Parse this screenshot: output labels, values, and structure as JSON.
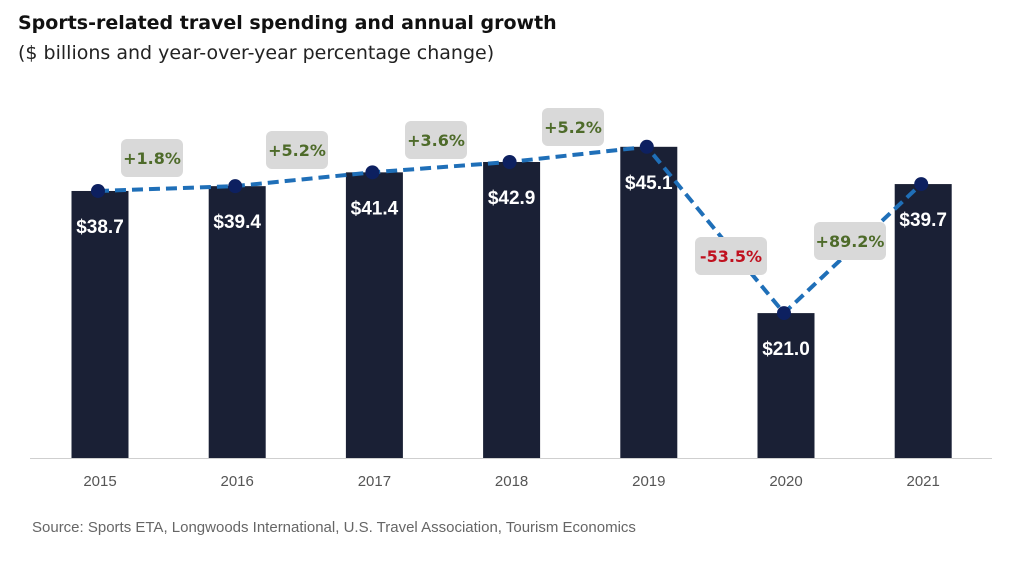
{
  "chart_data": {
    "type": "bar+line",
    "title": "Sports-related travel spending and annual growth",
    "subtitle": "($ billions and year-over-year percentage change)",
    "categories": [
      "2015",
      "2016",
      "2017",
      "2018",
      "2019",
      "2020",
      "2021"
    ],
    "values": [
      38.7,
      39.4,
      41.4,
      42.9,
      45.1,
      21.0,
      39.7
    ],
    "value_labels": [
      "$38.7",
      "$39.4",
      "$41.4",
      "$42.9",
      "$45.1",
      "$21.0",
      "$39.7"
    ],
    "growth_labels": [
      "+1.8%",
      "+5.2%",
      "+3.6%",
      "+5.2%",
      "-53.5%",
      "+89.2%"
    ],
    "growth_values": [
      1.8,
      5.2,
      3.6,
      5.2,
      -53.5,
      89.2
    ],
    "ylim": [
      0,
      46
    ],
    "grid": false,
    "colors": {
      "bar": "#1a2035",
      "line": "#1f6fb8",
      "marker": "#0d2060",
      "label_box": "#d9d9d9",
      "positive": "#4e6b2a",
      "negative": "#c0111f"
    }
  },
  "source": "Source: Sports ETA, Longwoods International, U.S. Travel Association, Tourism Economics"
}
